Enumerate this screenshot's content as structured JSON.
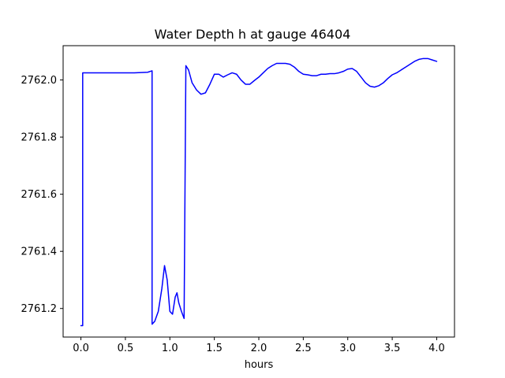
{
  "chart_data": {
    "type": "line",
    "title": "Water Depth h at gauge 46404",
    "xlabel": "hours",
    "ylabel": "",
    "xlim": [
      -0.2,
      4.2
    ],
    "ylim": [
      2761.1,
      2762.12
    ],
    "x_ticks": [
      0.0,
      0.5,
      1.0,
      1.5,
      2.0,
      2.5,
      3.0,
      3.5,
      4.0
    ],
    "x_tick_labels": [
      "0.0",
      "0.5",
      "1.0",
      "1.5",
      "2.0",
      "2.5",
      "3.0",
      "3.5",
      "4.0"
    ],
    "y_ticks": [
      2761.2,
      2761.4,
      2761.6,
      2761.8,
      2762.0
    ],
    "y_tick_labels": [
      "2761.2",
      "2761.4",
      "2761.6",
      "2761.8",
      "2762.0"
    ],
    "grid": false,
    "series": [
      {
        "color": "#0000ff",
        "x": [
          0.0,
          0.02,
          0.02,
          0.05,
          0.2,
          0.4,
          0.6,
          0.75,
          0.8,
          0.8,
          0.83,
          0.87,
          0.91,
          0.94,
          0.97,
          1.0,
          1.03,
          1.06,
          1.08,
          1.1,
          1.13,
          1.16,
          1.18,
          1.18,
          1.21,
          1.25,
          1.3,
          1.35,
          1.4,
          1.45,
          1.5,
          1.55,
          1.6,
          1.65,
          1.7,
          1.75,
          1.8,
          1.85,
          1.9,
          1.95,
          2.0,
          2.05,
          2.1,
          2.15,
          2.2,
          2.25,
          2.3,
          2.35,
          2.4,
          2.45,
          2.5,
          2.55,
          2.6,
          2.65,
          2.7,
          2.75,
          2.8,
          2.85,
          2.9,
          2.95,
          3.0,
          3.05,
          3.1,
          3.15,
          3.2,
          3.25,
          3.3,
          3.35,
          3.4,
          3.45,
          3.5,
          3.55,
          3.6,
          3.65,
          3.7,
          3.75,
          3.8,
          3.85,
          3.9,
          3.95,
          4.0
        ],
        "y": [
          2761.14,
          2761.14,
          2762.025,
          2762.025,
          2762.025,
          2762.025,
          2762.025,
          2762.027,
          2762.032,
          2761.145,
          2761.155,
          2761.19,
          2761.27,
          2761.35,
          2761.3,
          2761.19,
          2761.18,
          2761.24,
          2761.255,
          2761.22,
          2761.19,
          2761.165,
          2762.05,
          2762.05,
          2762.035,
          2761.99,
          2761.965,
          2761.95,
          2761.955,
          2761.985,
          2762.02,
          2762.02,
          2762.01,
          2762.018,
          2762.025,
          2762.02,
          2762.0,
          2761.985,
          2761.985,
          2761.998,
          2762.01,
          2762.025,
          2762.04,
          2762.05,
          2762.058,
          2762.058,
          2762.058,
          2762.055,
          2762.045,
          2762.03,
          2762.02,
          2762.018,
          2762.015,
          2762.015,
          2762.02,
          2762.02,
          2762.022,
          2762.022,
          2762.025,
          2762.03,
          2762.038,
          2762.04,
          2762.03,
          2762.01,
          2761.99,
          2761.978,
          2761.975,
          2761.98,
          2761.99,
          2762.005,
          2762.018,
          2762.025,
          2762.035,
          2762.045,
          2762.055,
          2762.065,
          2762.072,
          2762.075,
          2762.075,
          2762.07,
          2762.065
        ]
      }
    ]
  }
}
